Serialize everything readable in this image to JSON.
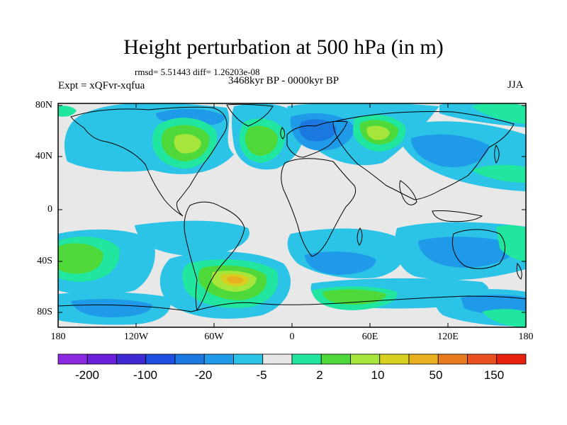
{
  "title": "Height perturbation at 500 hPa (in m)",
  "stats": "rmsd= 5.51443 diff= 1.26203e-08",
  "period": "3468kyr BP - 0000kyr BP",
  "experiment": "Expt = xQFvr-xqfua",
  "season": "JJA",
  "lat_labels": [
    "80N",
    "40N",
    "0",
    "40S",
    "80S"
  ],
  "lon_labels": [
    "180",
    "120W",
    "60W",
    "0",
    "60E",
    "120E",
    "180"
  ],
  "colorbar": {
    "colors": [
      "#8a2be2",
      "#6a1fd8",
      "#3f2ad2",
      "#1f4fe0",
      "#1b78e0",
      "#1e9ae8",
      "#2bc3e6",
      "#e6e6e6",
      "#20e6a0",
      "#4fd83a",
      "#a6e63a",
      "#d8d020",
      "#e8b020",
      "#e87a20",
      "#e85020",
      "#e82010"
    ],
    "labels": [
      "-200",
      "-100",
      "-20",
      "-5",
      "2",
      "10",
      "50",
      "150"
    ]
  },
  "palette": {
    "neutral": "#e8e8e8",
    "cyan": "#2bc3e6",
    "blue_light": "#1e9ae8",
    "blue": "#1b78e0",
    "blue_dark": "#1f4fe0",
    "teal": "#20e6a0",
    "green": "#4fd83a",
    "yellow_green": "#a6e63a",
    "yellow": "#d8d020",
    "orange": "#e8b020"
  }
}
